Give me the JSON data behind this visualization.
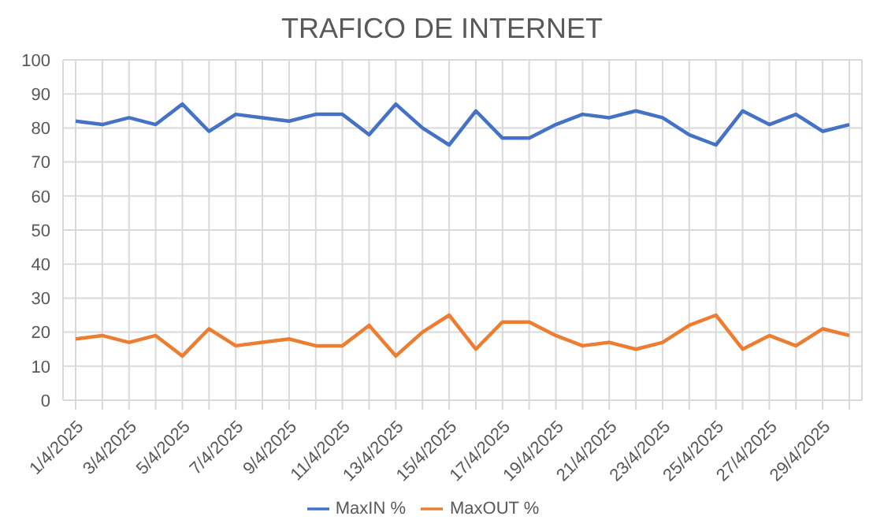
{
  "chart_data": {
    "type": "line",
    "title": "TRAFICO DE INTERNET",
    "categories": [
      "1/4/2025",
      null,
      "3/4/2025",
      null,
      "5/4/2025",
      null,
      "7/4/2025",
      null,
      "9/4/2025",
      null,
      "11/4/2025",
      null,
      "13/4/2025",
      null,
      "15/4/2025",
      null,
      "17/4/2025",
      null,
      "19/4/2025",
      null,
      "21/4/2025",
      null,
      "23/4/2025",
      null,
      "25/4/2025",
      null,
      "27/4/2025",
      null,
      "29/4/2025",
      null
    ],
    "series": [
      {
        "name": "MaxIN %",
        "color": "#4472c4",
        "values": [
          82,
          81,
          83,
          81,
          87,
          79,
          84,
          83,
          82,
          84,
          84,
          78,
          87,
          80,
          75,
          85,
          77,
          77,
          81,
          84,
          83,
          85,
          83,
          78,
          75,
          85,
          81,
          84,
          79,
          81
        ]
      },
      {
        "name": "MaxOUT %",
        "color": "#ed7d31",
        "values": [
          18,
          19,
          17,
          19,
          13,
          21,
          16,
          17,
          18,
          16,
          16,
          22,
          13,
          20,
          25,
          15,
          23,
          23,
          19,
          16,
          17,
          15,
          17,
          22,
          25,
          15,
          19,
          16,
          21,
          19
        ]
      }
    ],
    "ylim": [
      0,
      100
    ],
    "yticks": [
      0,
      10,
      20,
      30,
      40,
      50,
      60,
      70,
      80,
      90,
      100
    ],
    "grid": true,
    "legend": "bottom",
    "marker": "none",
    "line_style": "solid"
  }
}
